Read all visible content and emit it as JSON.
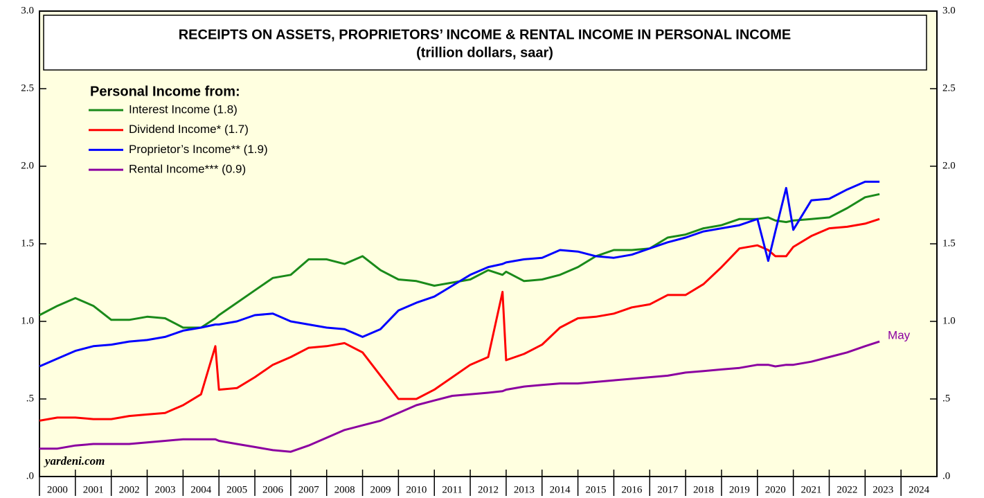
{
  "chart_data": {
    "type": "line",
    "title": "RECEIPTS ON ASSETS, PROPRIETORS’ INCOME & RENTAL INCOME IN PERSONAL INCOME",
    "subtitle": "(trillion dollars, saar)",
    "legend_title": "Personal Income from:",
    "legend": "upper left",
    "annotation": "May",
    "source": "yardeni.com",
    "background": "#ffffe0",
    "x": [
      2000.0,
      2000.5,
      2001.0,
      2001.5,
      2002.0,
      2002.5,
      2003.0,
      2003.5,
      2004.0,
      2004.5,
      2004.9,
      2005.0,
      2005.5,
      2006.0,
      2006.5,
      2007.0,
      2007.5,
      2008.0,
      2008.5,
      2009.0,
      2009.5,
      2010.0,
      2010.5,
      2011.0,
      2011.5,
      2012.0,
      2012.5,
      2012.9,
      2013.0,
      2013.5,
      2014.0,
      2014.5,
      2015.0,
      2015.5,
      2016.0,
      2016.5,
      2017.0,
      2017.5,
      2018.0,
      2018.5,
      2019.0,
      2019.5,
      2020.0,
      2020.3,
      2020.5,
      2020.8,
      2021.0,
      2021.5,
      2022.0,
      2022.5,
      2023.0,
      2023.4
    ],
    "series": [
      {
        "name": "Interest Income (1.8)",
        "color": "#1a8a1a",
        "values": [
          1.04,
          1.1,
          1.15,
          1.1,
          1.01,
          1.01,
          1.03,
          1.02,
          0.96,
          0.96,
          1.02,
          1.04,
          1.12,
          1.2,
          1.28,
          1.3,
          1.4,
          1.4,
          1.37,
          1.42,
          1.33,
          1.27,
          1.26,
          1.23,
          1.25,
          1.27,
          1.33,
          1.3,
          1.32,
          1.26,
          1.27,
          1.3,
          1.35,
          1.42,
          1.46,
          1.46,
          1.47,
          1.54,
          1.56,
          1.6,
          1.62,
          1.66,
          1.66,
          1.67,
          1.65,
          1.64,
          1.65,
          1.66,
          1.67,
          1.73,
          1.8,
          1.82
        ]
      },
      {
        "name": "Dividend Income* (1.7)",
        "color": "#ff0000",
        "values": [
          0.36,
          0.38,
          0.38,
          0.37,
          0.37,
          0.39,
          0.4,
          0.41,
          0.46,
          0.53,
          0.84,
          0.56,
          0.57,
          0.64,
          0.72,
          0.77,
          0.83,
          0.84,
          0.86,
          0.8,
          0.65,
          0.5,
          0.5,
          0.56,
          0.64,
          0.72,
          0.77,
          1.19,
          0.75,
          0.79,
          0.85,
          0.96,
          1.02,
          1.03,
          1.05,
          1.09,
          1.11,
          1.17,
          1.17,
          1.24,
          1.35,
          1.47,
          1.49,
          1.46,
          1.42,
          1.42,
          1.48,
          1.55,
          1.6,
          1.61,
          1.63,
          1.66
        ]
      },
      {
        "name": "Proprietor’s Income** (1.9)",
        "color": "#0000ff",
        "values": [
          0.71,
          0.76,
          0.81,
          0.84,
          0.85,
          0.87,
          0.88,
          0.9,
          0.94,
          0.96,
          0.98,
          0.98,
          1.0,
          1.04,
          1.05,
          1.0,
          0.98,
          0.96,
          0.95,
          0.9,
          0.95,
          1.07,
          1.12,
          1.16,
          1.23,
          1.3,
          1.35,
          1.37,
          1.38,
          1.4,
          1.41,
          1.46,
          1.45,
          1.42,
          1.41,
          1.43,
          1.47,
          1.51,
          1.54,
          1.58,
          1.6,
          1.62,
          1.66,
          1.39,
          1.58,
          1.86,
          1.59,
          1.78,
          1.79,
          1.85,
          1.9,
          1.9
        ]
      },
      {
        "name": "Rental Income*** (0.9)",
        "color": "#8b00a0",
        "values": [
          0.18,
          0.18,
          0.2,
          0.21,
          0.21,
          0.21,
          0.22,
          0.23,
          0.24,
          0.24,
          0.24,
          0.23,
          0.21,
          0.19,
          0.17,
          0.16,
          0.2,
          0.25,
          0.3,
          0.33,
          0.36,
          0.41,
          0.46,
          0.49,
          0.52,
          0.53,
          0.54,
          0.55,
          0.56,
          0.58,
          0.59,
          0.6,
          0.6,
          0.61,
          0.62,
          0.63,
          0.64,
          0.65,
          0.67,
          0.68,
          0.69,
          0.7,
          0.72,
          0.72,
          0.71,
          0.72,
          0.72,
          0.74,
          0.77,
          0.8,
          0.84,
          0.87
        ]
      }
    ],
    "xlim": [
      2000,
      2025
    ],
    "xticks": [
      2000,
      2001,
      2002,
      2003,
      2004,
      2005,
      2006,
      2007,
      2008,
      2009,
      2010,
      2011,
      2012,
      2013,
      2014,
      2015,
      2016,
      2017,
      2018,
      2019,
      2020,
      2021,
      2022,
      2023,
      2024
    ],
    "ylim": [
      0,
      3
    ],
    "yticks": [
      {
        "value": 0,
        "label": ".0"
      },
      {
        "value": 0.5,
        "label": ".5"
      },
      {
        "value": 1,
        "label": "1.0"
      },
      {
        "value": 1.5,
        "label": "1.5"
      },
      {
        "value": 2,
        "label": "2.0"
      },
      {
        "value": 2.5,
        "label": "2.5"
      },
      {
        "value": 3,
        "label": "3.0"
      }
    ]
  }
}
